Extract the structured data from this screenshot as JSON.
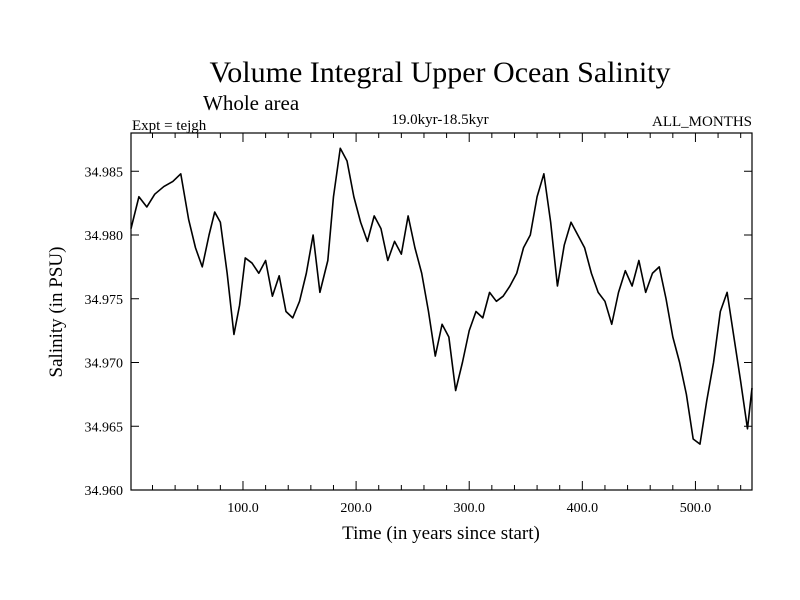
{
  "chart_data": {
    "type": "line",
    "title": "Volume Integral Upper Ocean Salinity",
    "subtitle": "Whole area",
    "expt_label": "Expt = tejgh",
    "period_label": "19.0kyr-18.5kyr",
    "months_label": "ALL_MONTHS",
    "xlabel": "Time (in years since start)",
    "ylabel": "Salinity (in PSU)",
    "xlim": [
      1,
      550
    ],
    "ylim": [
      34.96,
      34.988
    ],
    "xticks": [
      {
        "value": 100,
        "label": "100.0"
      },
      {
        "value": 200,
        "label": "200.0"
      },
      {
        "value": 300,
        "label": "300.0"
      },
      {
        "value": 400,
        "label": "400.0"
      },
      {
        "value": 500,
        "label": "500.0"
      }
    ],
    "yticks": [
      {
        "value": 34.96,
        "label": "34.960"
      },
      {
        "value": 34.965,
        "label": "34.965"
      },
      {
        "value": 34.97,
        "label": "34.970"
      },
      {
        "value": 34.975,
        "label": "34.975"
      },
      {
        "value": 34.98,
        "label": "34.980"
      },
      {
        "value": 34.985,
        "label": "34.985"
      }
    ],
    "series": [
      {
        "name": "salinity",
        "color": "#000000",
        "x": [
          1,
          8,
          15,
          22,
          30,
          38,
          45,
          52,
          58,
          64,
          70,
          75,
          80,
          86,
          92,
          97,
          102,
          108,
          114,
          120,
          126,
          132,
          138,
          144,
          150,
          156,
          162,
          168,
          175,
          180,
          186,
          192,
          198,
          204,
          210,
          216,
          222,
          228,
          234,
          240,
          246,
          252,
          258,
          264,
          270,
          276,
          282,
          288,
          294,
          300,
          306,
          312,
          318,
          324,
          330,
          336,
          342,
          348,
          354,
          360,
          366,
          372,
          378,
          384,
          390,
          396,
          402,
          408,
          414,
          420,
          426,
          432,
          438,
          444,
          450,
          456,
          462,
          468,
          474,
          480,
          486,
          492,
          498,
          504,
          510,
          516,
          522,
          528,
          534,
          540,
          546,
          550
        ],
        "values": [
          34.9805,
          34.983,
          34.9822,
          34.9832,
          34.9838,
          34.9842,
          34.9848,
          34.9812,
          34.979,
          34.9775,
          34.98,
          34.9818,
          34.981,
          34.977,
          34.9722,
          34.9745,
          34.9782,
          34.9778,
          34.977,
          34.978,
          34.9752,
          34.9768,
          34.974,
          34.9735,
          34.9748,
          34.977,
          34.98,
          34.9755,
          34.978,
          34.983,
          34.9868,
          34.9858,
          34.983,
          34.981,
          34.9795,
          34.9815,
          34.9805,
          34.978,
          34.9795,
          34.9785,
          34.9815,
          34.979,
          34.977,
          34.974,
          34.9705,
          34.973,
          34.972,
          34.9678,
          34.97,
          34.9725,
          34.974,
          34.9735,
          34.9755,
          34.9748,
          34.9752,
          34.976,
          34.977,
          34.979,
          34.98,
          34.983,
          34.9848,
          34.981,
          34.976,
          34.9792,
          34.981,
          34.98,
          34.979,
          34.977,
          34.9755,
          34.9748,
          34.973,
          34.9755,
          34.9772,
          34.976,
          34.978,
          34.9755,
          34.977,
          34.9775,
          34.975,
          34.972,
          34.97,
          34.9675,
          34.964,
          34.9636,
          34.967,
          34.97,
          34.974,
          34.9755,
          34.972,
          34.9685,
          34.9648,
          34.968
        ]
      }
    ]
  }
}
